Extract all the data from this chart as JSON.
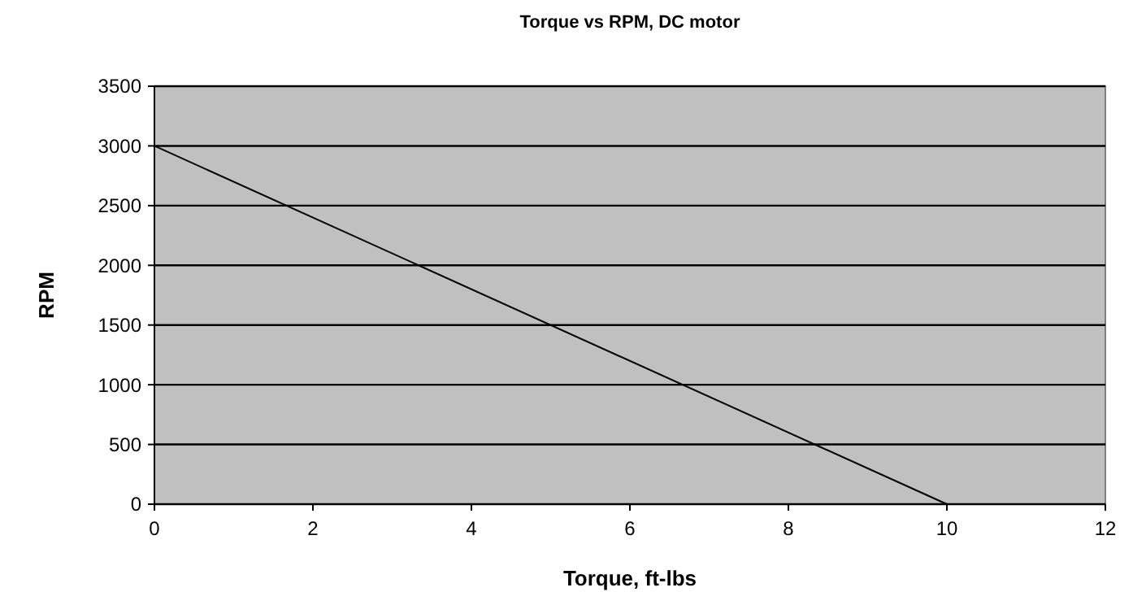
{
  "chart_data": {
    "type": "line",
    "title": "Torque vs RPM, DC motor",
    "xlabel": "Torque, ft-lbs",
    "ylabel": "RPM",
    "x": [
      0,
      10
    ],
    "series": [
      {
        "color": "#000000",
        "values": [
          3000,
          0
        ]
      }
    ],
    "xlim": [
      0,
      12
    ],
    "xticks": [
      0,
      2,
      4,
      6,
      8,
      10,
      12
    ],
    "ylim": [
      0,
      3500
    ],
    "yticks": [
      0,
      500,
      1000,
      1500,
      2000,
      2500,
      3000,
      3500
    ],
    "grid": "y",
    "marker": "none",
    "line_style": "solid"
  }
}
